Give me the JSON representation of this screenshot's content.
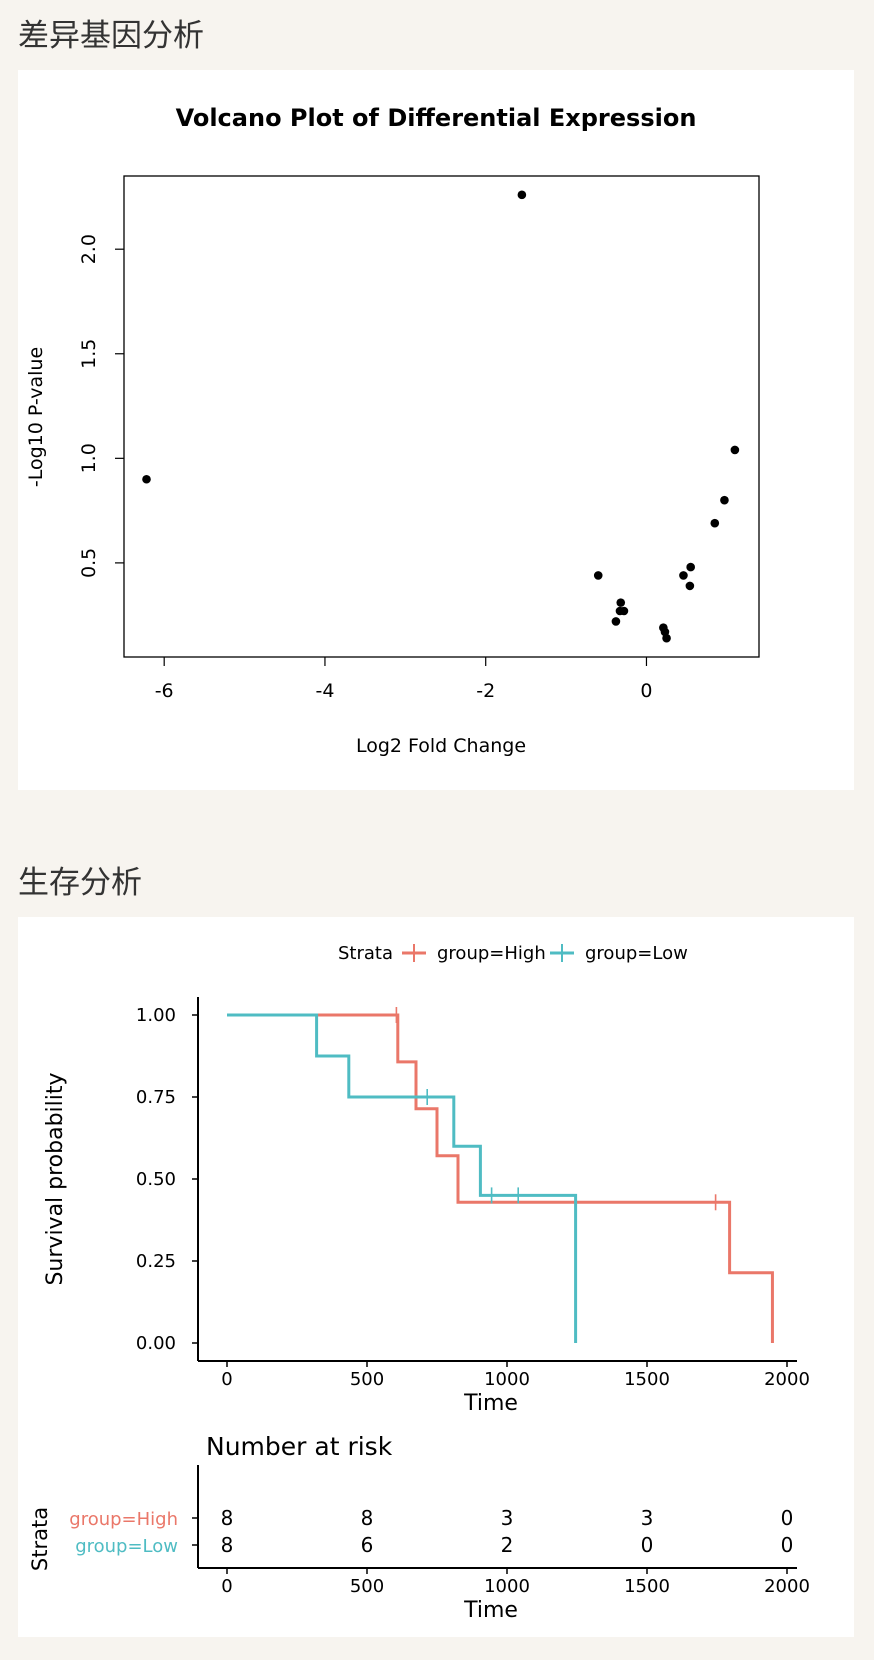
{
  "sections": {
    "deg_title": "差异基因分析",
    "survival_title": "生存分析"
  },
  "chart_data": [
    {
      "type": "scatter",
      "title": "Volcano Plot of Differential Expression",
      "xlabel": "Log2 Fold Change",
      "ylabel": "-Log10 P-value",
      "xticks": [
        -6,
        -4,
        -2,
        0
      ],
      "yticks": [
        0.5,
        1.0,
        1.5,
        2.0
      ],
      "ytick_labels": [
        "0.5",
        "1.0",
        "1.5",
        "2.0"
      ],
      "xlim": [
        -6.5,
        1.4
      ],
      "ylim": [
        0.05,
        2.35
      ],
      "points": [
        {
          "x": -6.22,
          "y": 0.9
        },
        {
          "x": -1.55,
          "y": 2.26
        },
        {
          "x": -0.6,
          "y": 0.44
        },
        {
          "x": -0.32,
          "y": 0.31
        },
        {
          "x": -0.33,
          "y": 0.27
        },
        {
          "x": -0.28,
          "y": 0.27
        },
        {
          "x": -0.38,
          "y": 0.22
        },
        {
          "x": 0.21,
          "y": 0.19
        },
        {
          "x": 0.23,
          "y": 0.17
        },
        {
          "x": 0.25,
          "y": 0.14
        },
        {
          "x": 0.46,
          "y": 0.44
        },
        {
          "x": 0.55,
          "y": 0.48
        },
        {
          "x": 0.54,
          "y": 0.39
        },
        {
          "x": 0.85,
          "y": 0.69
        },
        {
          "x": 0.97,
          "y": 0.8
        },
        {
          "x": 1.1,
          "y": 1.04
        }
      ],
      "colors": {
        "points": "#000000",
        "axis": "#000000"
      }
    },
    {
      "type": "line",
      "subtype": "kaplan-meier",
      "legend_title": "Strata",
      "legend_position": "top",
      "xlabel": "Time",
      "ylabel": "Survival probability",
      "xlim": [
        0,
        2000
      ],
      "ylim": [
        0,
        1
      ],
      "xticks": [
        0,
        500,
        1000,
        1500,
        2000
      ],
      "yticks": [
        0.0,
        0.25,
        0.5,
        0.75,
        1.0
      ],
      "ytick_labels": [
        "0.00",
        "0.25",
        "0.50",
        "0.75",
        "1.00"
      ],
      "series": [
        {
          "name": "group=High",
          "color": "#ea7769",
          "steps": [
            [
              0,
              1.0
            ],
            [
              610,
              0.857
            ],
            [
              675,
              0.714
            ],
            [
              750,
              0.571
            ],
            [
              825,
              0.429
            ],
            [
              1795,
              0.214
            ],
            [
              1948,
              0.0
            ]
          ],
          "end_time": 1948,
          "censor": [
            [
              605,
              1.0
            ],
            [
              1745,
              0.429
            ]
          ]
        },
        {
          "name": "group=Low",
          "color": "#4fbcc3",
          "steps": [
            [
              0,
              1.0
            ],
            [
              320,
              0.875
            ],
            [
              435,
              0.75
            ],
            [
              810,
              0.6
            ],
            [
              905,
              0.45
            ],
            [
              1245,
              0.0
            ]
          ],
          "end_time": 1245,
          "censor": [
            [
              715,
              0.75
            ],
            [
              945,
              0.45
            ],
            [
              1040,
              0.45
            ]
          ]
        }
      ]
    },
    {
      "type": "table",
      "title": "Number at risk",
      "row_label": "Strata",
      "xlabel": "Time",
      "times": [
        0,
        500,
        1000,
        1500,
        2000
      ],
      "rows": [
        {
          "name": "group=High",
          "color": "#ea7769",
          "values": [
            8,
            8,
            3,
            3,
            0
          ]
        },
        {
          "name": "group=Low",
          "color": "#4fbcc3",
          "values": [
            8,
            6,
            2,
            0,
            0
          ]
        }
      ]
    }
  ]
}
